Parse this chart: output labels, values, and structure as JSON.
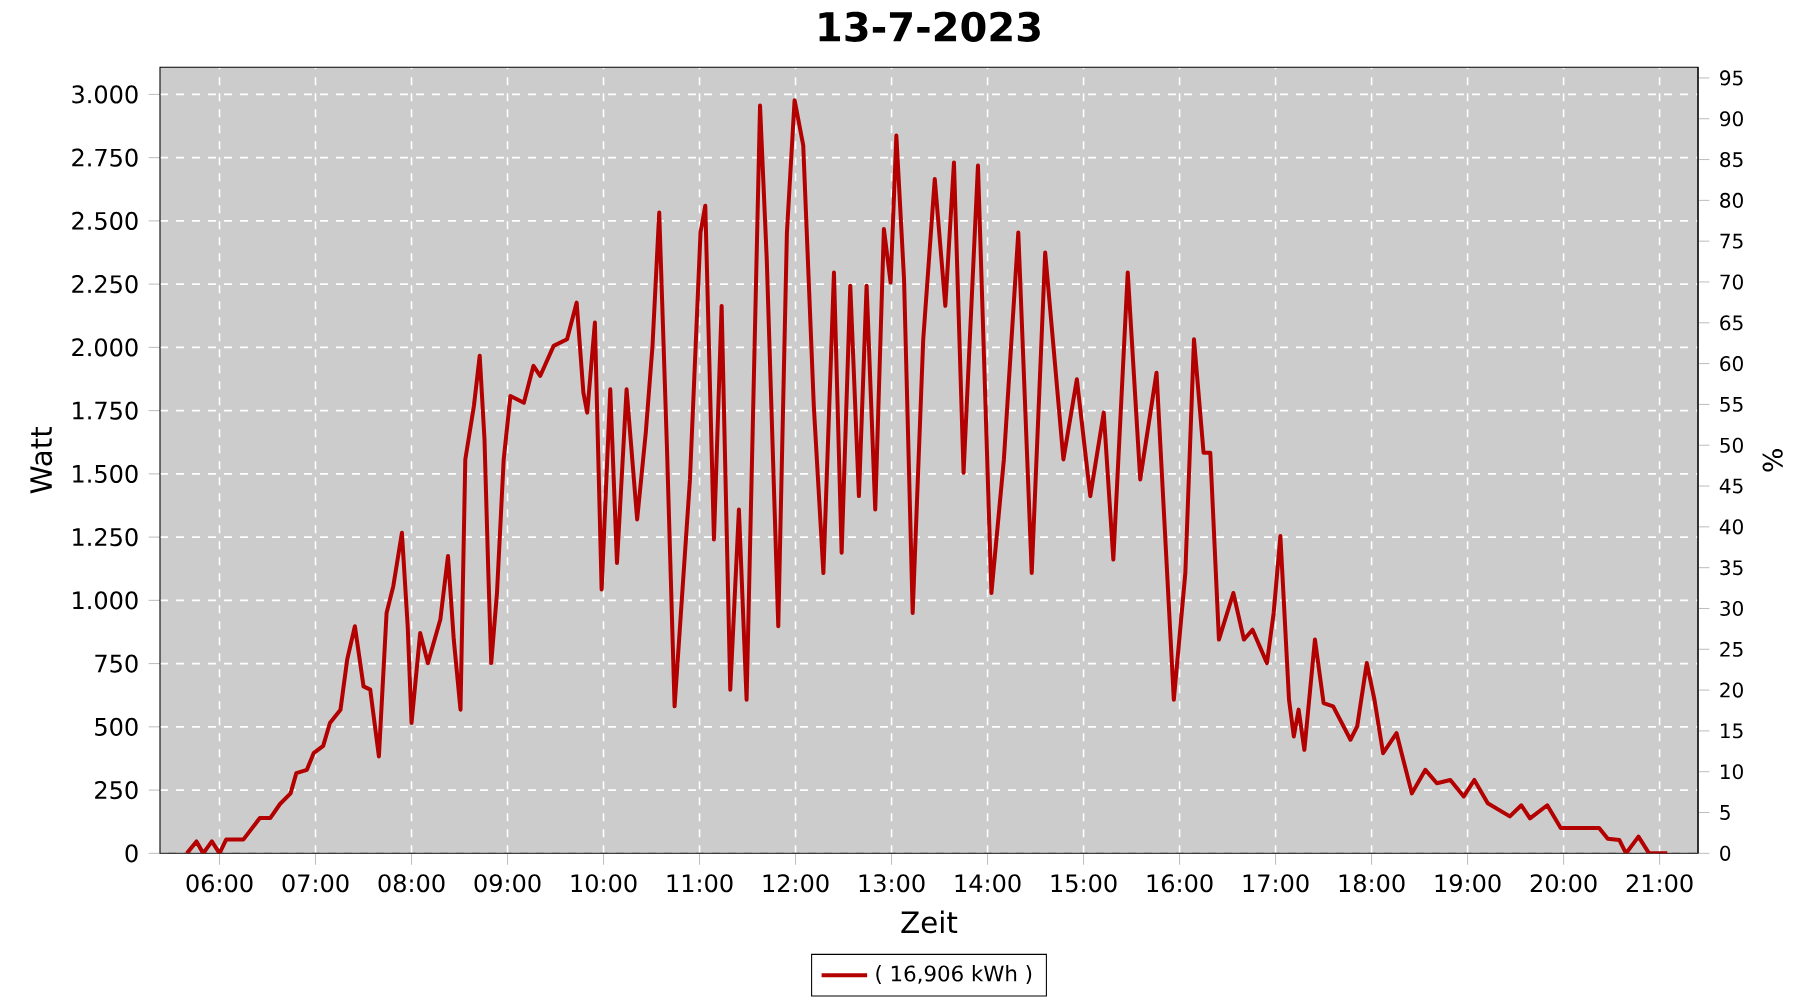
{
  "chart_data": {
    "type": "line",
    "title": "13-7-2023",
    "xlabel": "Zeit",
    "ylabel": "Watt",
    "y2label": "%",
    "xlim": [
      5.38,
      21.4
    ],
    "xticks": [
      {
        "value": 6,
        "label": "06:00"
      },
      {
        "value": 7,
        "label": "07:00"
      },
      {
        "value": 8,
        "label": "08:00"
      },
      {
        "value": 9,
        "label": "09:00"
      },
      {
        "value": 10,
        "label": "10:00"
      },
      {
        "value": 11,
        "label": "11:00"
      },
      {
        "value": 12,
        "label": "12:00"
      },
      {
        "value": 13,
        "label": "13:00"
      },
      {
        "value": 14,
        "label": "14:00"
      },
      {
        "value": 15,
        "label": "15:00"
      },
      {
        "value": 16,
        "label": "16:00"
      },
      {
        "value": 17,
        "label": "17:00"
      },
      {
        "value": 18,
        "label": "18:00"
      },
      {
        "value": 19,
        "label": "19:00"
      },
      {
        "value": 20,
        "label": "20:00"
      },
      {
        "value": 21,
        "label": "21:00"
      }
    ],
    "ylim": [
      0,
      3107
    ],
    "yticks": [
      0,
      250,
      500,
      750,
      {
        "value": 1000,
        "label": "1.000"
      },
      {
        "value": 1250,
        "label": "1.250"
      },
      {
        "value": 1500,
        "label": "1.500"
      },
      {
        "value": 1750,
        "label": "1.750"
      },
      {
        "value": 2000,
        "label": "2.000"
      },
      {
        "value": 2250,
        "label": "2.250"
      },
      {
        "value": 2500,
        "label": "2.500"
      },
      {
        "value": 2750,
        "label": "2.750"
      },
      {
        "value": 3000,
        "label": "3.000"
      }
    ],
    "y2lim": [
      0,
      96.3
    ],
    "y2ticks": [
      0,
      5,
      10,
      15,
      20,
      25,
      30,
      35,
      40,
      45,
      50,
      55,
      60,
      65,
      70,
      75,
      80,
      85,
      90,
      95
    ],
    "grid": true,
    "legend": "bottom",
    "marker": "none",
    "line_style": "solid",
    "series": [
      {
        "name": "( 16,906 kWh )",
        "color": "#b30000",
        "x": [
          5.66,
          5.76,
          5.83,
          5.92,
          6.0,
          6.07,
          6.25,
          6.42,
          6.53,
          6.63,
          6.74,
          6.8,
          6.91,
          6.98,
          7.08,
          7.15,
          7.26,
          7.33,
          7.41,
          7.5,
          7.57,
          7.66,
          7.74,
          7.81,
          7.9,
          7.96,
          8.0,
          8.09,
          8.17,
          8.3,
          8.38,
          8.44,
          8.51,
          8.56,
          8.65,
          8.71,
          8.76,
          8.8,
          8.83,
          8.89,
          8.96,
          9.03,
          9.17,
          9.27,
          9.34,
          9.48,
          9.62,
          9.72,
          9.79,
          9.83,
          9.91,
          9.98,
          10.07,
          10.14,
          10.24,
          10.35,
          10.44,
          10.51,
          10.58,
          10.66,
          10.74,
          10.9,
          11.01,
          11.06,
          11.15,
          11.23,
          11.32,
          11.41,
          11.49,
          11.63,
          11.7,
          11.82,
          11.91,
          11.99,
          12.08,
          12.19,
          12.29,
          12.4,
          12.48,
          12.57,
          12.66,
          12.74,
          12.83,
          12.92,
          12.99,
          13.05,
          13.13,
          13.22,
          13.33,
          13.45,
          13.56,
          13.65,
          13.75,
          13.9,
          14.04,
          14.17,
          14.32,
          14.46,
          14.6,
          14.79,
          14.93,
          15.07,
          15.21,
          15.31,
          15.46,
          15.59,
          15.76,
          15.94,
          16.06,
          16.15,
          16.25,
          16.32,
          16.41,
          16.56,
          16.67,
          16.76,
          16.91,
          16.98,
          17.05,
          17.14,
          17.19,
          17.24,
          17.3,
          17.41,
          17.5,
          17.6,
          17.78,
          17.85,
          17.95,
          18.03,
          18.12,
          18.26,
          18.33,
          18.42,
          18.56,
          18.68,
          18.82,
          18.96,
          19.07,
          19.21,
          19.44,
          19.56,
          19.65,
          19.83,
          19.97,
          20.37,
          20.46,
          20.58,
          20.65,
          20.78,
          20.89,
          21.08
        ],
        "values": [
          0,
          47,
          0,
          47,
          0,
          55,
          55,
          140,
          140,
          195,
          237,
          317,
          330,
          396,
          425,
          515,
          568,
          766,
          898,
          660,
          647,
          383,
          950,
          1056,
          1267,
          898,
          515,
          871,
          752,
          924,
          1175,
          845,
          568,
          1557,
          1769,
          1967,
          1636,
          1108,
          752,
          1029,
          1557,
          1808,
          1781,
          1927,
          1887,
          2006,
          2032,
          2177,
          1821,
          1742,
          2098,
          1043,
          1834,
          1148,
          1834,
          1320,
          1663,
          2006,
          2533,
          1610,
          581,
          1478,
          2454,
          2560,
          1241,
          2164,
          647,
          1359,
          607,
          2956,
          2349,
          898,
          2454,
          2977,
          2798,
          1769,
          1108,
          2296,
          1188,
          2244,
          1412,
          2244,
          1359,
          2468,
          2256,
          2837,
          2270,
          950,
          2032,
          2666,
          2164,
          2731,
          1504,
          2719,
          1029,
          1557,
          2454,
          1108,
          2375,
          1557,
          1874,
          1412,
          1742,
          1161,
          2296,
          1478,
          1900,
          607,
          1108,
          2032,
          1583,
          1583,
          845,
          1029,
          845,
          884,
          752,
          950,
          1254,
          607,
          462,
          568,
          409,
          845,
          594,
          581,
          449,
          502,
          752,
          607,
          396,
          475,
          370,
          237,
          330,
          277,
          290,
          225,
          290,
          198,
          146,
          190,
          138,
          190,
          100,
          100,
          58,
          53,
          0,
          66,
          0,
          0
        ]
      }
    ]
  }
}
